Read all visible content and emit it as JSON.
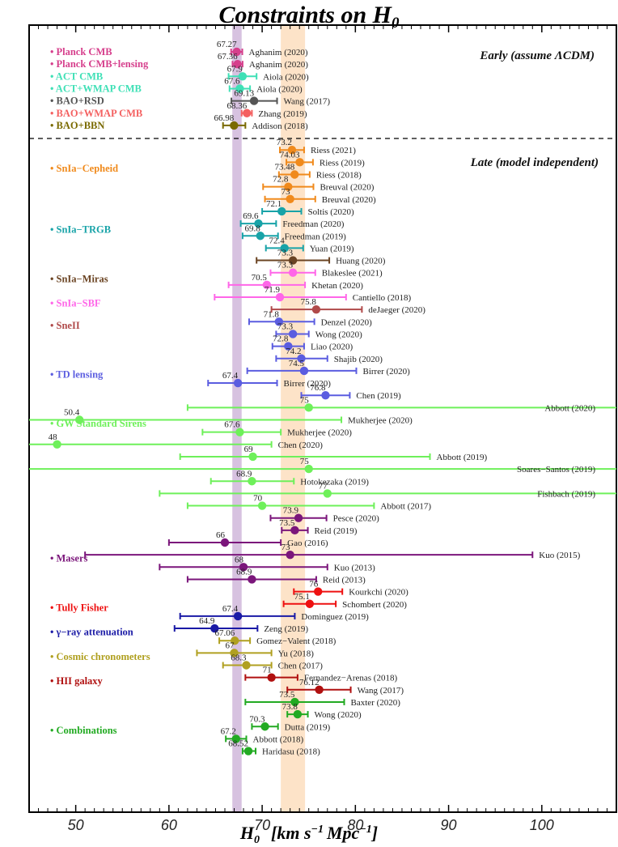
{
  "chart_data": {
    "type": "scatter",
    "title": "Constraints on H",
    "title_sub": "0",
    "xlabel": "H",
    "xlabel_sub": "0",
    "xlabel_units": "[km s",
    "xlabel_units2": "Mpc",
    "xlabel_units3": "]",
    "xlim": [
      45,
      108
    ],
    "xticks": [
      50,
      60,
      70,
      80,
      90,
      100
    ],
    "bands": [
      {
        "name": "planck-band",
        "range": [
          66.8,
          67.8
        ],
        "color": "#d7c2e0"
      },
      {
        "name": "shoes-band",
        "range": [
          72.0,
          74.6
        ],
        "color": "#fde3c8"
      }
    ],
    "sections": [
      {
        "name": "early",
        "label": "Early  (assume ΛCDM)"
      },
      {
        "name": "late",
        "label": "Late (model independent)"
      }
    ],
    "groups": [
      {
        "label": "• Planck CMB",
        "color": "#d63f8c",
        "row": 0
      },
      {
        "label": "• Planck CMB+lensing",
        "color": "#d63f8c",
        "row": 1
      },
      {
        "label": "• ACT CMB",
        "color": "#3fe0b6",
        "row": 2
      },
      {
        "label": "• ACT+WMAP CMB",
        "color": "#3fe0b6",
        "row": 3
      },
      {
        "label": "• BAO+RSD",
        "color": "#555555",
        "row": 4
      },
      {
        "label": "• BAO+WMAP CMB",
        "color": "#f46060",
        "row": 5
      },
      {
        "label": "• BAO+BBN",
        "color": "#7a6a00",
        "row": 6
      },
      {
        "label": "• SnIa−Cepheid",
        "color": "#f08a1c",
        "row": 9.5
      },
      {
        "label": "• SnIa−TRGB",
        "color": "#18a3a8",
        "row": 14.5
      },
      {
        "label": "• SnIa−Miras",
        "color": "#6b4423",
        "row": 18.5
      },
      {
        "label": "• SnIa−SBF",
        "color": "#ff66e8",
        "row": 20.5
      },
      {
        "label": "• SneII",
        "color": "#b04a4a",
        "row": 22.3
      },
      {
        "label": "• TD lensing",
        "color": "#5b5de0",
        "row": 26.3
      },
      {
        "label": "• GW Standard Sirens",
        "color": "#6ef05a",
        "row": 30.3
      },
      {
        "label": "• Masers",
        "color": "#7b167b",
        "row": 41.3
      },
      {
        "label": "• Tully Fisher",
        "color": "#ee1111",
        "row": 45.3
      },
      {
        "label": "• γ−ray attenuation",
        "color": "#1a1aa6",
        "row": 47.3
      },
      {
        "label": "• Cosmic chronometers",
        "color": "#b0a020",
        "row": 49.3
      },
      {
        "label": "• HII galaxy",
        "color": "#b01010",
        "row": 51.3
      },
      {
        "label": "• Combinations",
        "color": "#22aa22",
        "row": 55.3
      }
    ],
    "series": [
      {
        "value": 67.27,
        "lo": 66.67,
        "hi": 67.87,
        "label": "67.27",
        "ref": "Aghanim (2020)",
        "color": "#d63f8c",
        "row": 0
      },
      {
        "value": 67.36,
        "lo": 66.82,
        "hi": 67.9,
        "label": "67.36",
        "ref": "Aghanim (2020)",
        "color": "#d63f8c",
        "row": 1
      },
      {
        "value": 67.9,
        "lo": 66.4,
        "hi": 69.4,
        "label": "67.9",
        "ref": "Aiola (2020)",
        "color": "#3fe0b6",
        "row": 2
      },
      {
        "value": 67.6,
        "lo": 66.5,
        "hi": 68.7,
        "label": "67.6",
        "ref": "Aiola (2020)",
        "color": "#3fe0b6",
        "row": 3
      },
      {
        "value": 69.13,
        "lo": 66.7,
        "hi": 71.6,
        "label": "69.13",
        "ref": "Wang (2017)",
        "color": "#555555",
        "row": 4
      },
      {
        "value": 68.36,
        "lo": 67.8,
        "hi": 68.9,
        "label": "68.36",
        "ref": "Zhang (2019)",
        "color": "#f46060",
        "row": 5
      },
      {
        "value": 66.98,
        "lo": 65.8,
        "hi": 68.2,
        "label": "66.98",
        "ref": "Addison (2018)",
        "color": "#7a6a00",
        "row": 6
      },
      {
        "value": 73.2,
        "lo": 71.9,
        "hi": 74.5,
        "label": "73.2",
        "ref": "Riess (2021)",
        "color": "#f08a1c",
        "row": 8
      },
      {
        "value": 74.03,
        "lo": 72.6,
        "hi": 75.45,
        "label": "74.03",
        "ref": "Riess (2019)",
        "color": "#f08a1c",
        "row": 9
      },
      {
        "value": 73.48,
        "lo": 71.8,
        "hi": 75.1,
        "label": "73.48",
        "ref": "Riess (2018)",
        "color": "#f08a1c",
        "row": 10
      },
      {
        "value": 72.8,
        "lo": 70.1,
        "hi": 75.5,
        "label": "72.8",
        "ref": "Breuval (2020)",
        "color": "#f08a1c",
        "row": 11
      },
      {
        "value": 73.0,
        "lo": 70.3,
        "hi": 75.7,
        "label": "73",
        "ref": "Breuval (2020)",
        "color": "#f08a1c",
        "row": 12
      },
      {
        "value": 72.1,
        "lo": 70.0,
        "hi": 74.2,
        "label": "72.1",
        "ref": "Soltis (2020)",
        "color": "#18a3a8",
        "row": 13
      },
      {
        "value": 69.6,
        "lo": 67.7,
        "hi": 71.5,
        "label": "69.6",
        "ref": "Freedman (2020)",
        "color": "#18a3a8",
        "row": 14
      },
      {
        "value": 69.8,
        "lo": 67.9,
        "hi": 71.7,
        "label": "69.8",
        "ref": "Freedman (2019)",
        "color": "#18a3a8",
        "row": 15
      },
      {
        "value": 72.4,
        "lo": 70.4,
        "hi": 74.4,
        "label": "72.4",
        "ref": "Yuan (2019)",
        "color": "#18a3a8",
        "row": 16
      },
      {
        "value": 73.3,
        "lo": 69.4,
        "hi": 77.2,
        "label": "73.3",
        "ref": "Huang (2020)",
        "color": "#6b4423",
        "row": 17
      },
      {
        "value": 73.3,
        "lo": 70.9,
        "hi": 75.7,
        "label": "73.3",
        "ref": "Blakeslee (2021)",
        "color": "#ff66e8",
        "row": 18
      },
      {
        "value": 70.5,
        "lo": 66.4,
        "hi": 74.6,
        "label": "70.5",
        "ref": "Khetan (2020)",
        "color": "#ff66e8",
        "row": 19
      },
      {
        "value": 71.9,
        "lo": 64.9,
        "hi": 79.0,
        "label": "71.9",
        "ref": "Cantiello (2018)",
        "color": "#ff66e8",
        "row": 20
      },
      {
        "value": 75.8,
        "lo": 71.0,
        "hi": 80.7,
        "label": "75.8",
        "ref": "deJaeger (2020)",
        "color": "#b04a4a",
        "row": 21
      },
      {
        "value": 71.8,
        "lo": 68.6,
        "hi": 75.6,
        "label": "71.8",
        "ref": "Denzel (2020)",
        "color": "#5b5de0",
        "row": 22
      },
      {
        "value": 73.3,
        "lo": 71.5,
        "hi": 75.0,
        "label": "73.3",
        "ref": "Wong (2020)",
        "color": "#5b5de0",
        "row": 23
      },
      {
        "value": 72.8,
        "lo": 71.1,
        "hi": 74.5,
        "label": "72.8",
        "ref": "Liao (2020)",
        "color": "#5b5de0",
        "row": 24
      },
      {
        "value": 74.2,
        "lo": 71.5,
        "hi": 77.0,
        "label": "74.2",
        "ref": "Shajib (2020)",
        "color": "#5b5de0",
        "row": 25
      },
      {
        "value": 74.5,
        "lo": 68.4,
        "hi": 80.1,
        "label": "74.5",
        "ref": "Birrer (2020)",
        "color": "#5b5de0",
        "row": 26
      },
      {
        "value": 67.4,
        "lo": 64.2,
        "hi": 71.6,
        "label": "67.4",
        "ref": "Birrer (2020)",
        "color": "#5b5de0",
        "row": 27
      },
      {
        "value": 76.8,
        "lo": 74.2,
        "hi": 79.4,
        "label": "76.8",
        "ref": "Chen (2019)",
        "color": "#5b5de0",
        "row": 28
      },
      {
        "value": 75.0,
        "lo": 62.0,
        "hi": 108.0,
        "label": "75",
        "ref": "Abbott (2020)",
        "color": "#6ef05a",
        "row": 29,
        "ref_x": "far"
      },
      {
        "value": 50.4,
        "lo": 45.0,
        "hi": 78.5,
        "label": "50.4",
        "ref": "Mukherjee (2020)",
        "color": "#6ef05a",
        "row": 30
      },
      {
        "value": 67.6,
        "lo": 63.6,
        "hi": 72.0,
        "label": "67.6",
        "ref": "Mukherjee (2020)",
        "color": "#6ef05a",
        "row": 31
      },
      {
        "value": 48.0,
        "lo": 45.0,
        "hi": 71.0,
        "label": "48",
        "ref": "Chen (2020)",
        "color": "#6ef05a",
        "row": 32
      },
      {
        "value": 69.0,
        "lo": 61.2,
        "hi": 88.0,
        "label": "69",
        "ref": "Abbott (2019)",
        "color": "#6ef05a",
        "row": 33
      },
      {
        "value": 75.0,
        "lo": 45.0,
        "hi": 108.0,
        "label": "75",
        "ref": "Soares−Santos (2019)",
        "color": "#6ef05a",
        "row": 34,
        "ref_x": "far"
      },
      {
        "value": 68.9,
        "lo": 64.5,
        "hi": 73.4,
        "label": "68.9",
        "ref": "Hotokezaka (2019)",
        "color": "#6ef05a",
        "row": 35
      },
      {
        "value": 77.0,
        "lo": 59.0,
        "hi": 108.0,
        "label": "77",
        "ref": "Fishbach (2019)",
        "color": "#6ef05a",
        "row": 36,
        "ref_x": "far"
      },
      {
        "value": 70.0,
        "lo": 62.0,
        "hi": 82.0,
        "label": "70",
        "ref": "Abbott (2017)",
        "color": "#6ef05a",
        "row": 37
      },
      {
        "value": 73.9,
        "lo": 70.9,
        "hi": 76.9,
        "label": "73.9",
        "ref": "Pesce (2020)",
        "color": "#7b167b",
        "row": 38
      },
      {
        "value": 73.5,
        "lo": 72.1,
        "hi": 74.9,
        "label": "73.5",
        "ref": "Reid (2019)",
        "color": "#7b167b",
        "row": 39
      },
      {
        "value": 66.0,
        "lo": 60.0,
        "hi": 72.0,
        "label": "66",
        "ref": "Gao (2016)",
        "color": "#7b167b",
        "row": 40
      },
      {
        "value": 73.0,
        "lo": 51.0,
        "hi": 99.0,
        "label": "73",
        "ref": "Kuo (2015)",
        "color": "#7b167b",
        "row": 41
      },
      {
        "value": 68.0,
        "lo": 59.0,
        "hi": 77.0,
        "label": "68",
        "ref": "Kuo (2013)",
        "color": "#7b167b",
        "row": 42
      },
      {
        "value": 68.9,
        "lo": 62.0,
        "hi": 75.8,
        "label": "68.9",
        "ref": "Reid (2013)",
        "color": "#7b167b",
        "row": 43
      },
      {
        "value": 76.0,
        "lo": 73.4,
        "hi": 78.6,
        "label": "76",
        "ref": "Kourkchi (2020)",
        "color": "#ee1111",
        "row": 44
      },
      {
        "value": 75.1,
        "lo": 72.3,
        "hi": 77.9,
        "label": "75.1",
        "ref": "Schombert (2020)",
        "color": "#ee1111",
        "row": 45
      },
      {
        "value": 67.4,
        "lo": 61.2,
        "hi": 73.5,
        "label": "67.4",
        "ref": "Dominguez (2019)",
        "color": "#1a1aa6",
        "row": 46
      },
      {
        "value": 64.9,
        "lo": 60.6,
        "hi": 69.5,
        "label": "64.9",
        "ref": "Zeng (2019)",
        "color": "#1a1aa6",
        "row": 47
      },
      {
        "value": 67.06,
        "lo": 65.4,
        "hi": 68.7,
        "label": "67.06",
        "ref": "Gomez−Valent (2018)",
        "color": "#b0a020",
        "row": 48
      },
      {
        "value": 67.0,
        "lo": 63.0,
        "hi": 71.0,
        "label": "67",
        "ref": "Yu (2018)",
        "color": "#b0a020",
        "row": 49
      },
      {
        "value": 68.3,
        "lo": 65.8,
        "hi": 71.0,
        "label": "68.3",
        "ref": "Chen (2017)",
        "color": "#b0a020",
        "row": 50
      },
      {
        "value": 71.0,
        "lo": 68.2,
        "hi": 73.8,
        "label": "71",
        "ref": "Fernandez−Arenas (2018)",
        "color": "#b01010",
        "row": 51
      },
      {
        "value": 76.12,
        "lo": 72.7,
        "hi": 79.5,
        "label": "76.12",
        "ref": "Wang (2017)",
        "color": "#b01010",
        "row": 52
      },
      {
        "value": 73.5,
        "lo": 68.2,
        "hi": 78.8,
        "label": "73.5",
        "ref": "Baxter (2020)",
        "color": "#22aa22",
        "row": 53
      },
      {
        "value": 73.8,
        "lo": 72.7,
        "hi": 74.9,
        "label": "73.8",
        "ref": "Wong (2020)",
        "color": "#22aa22",
        "row": 54
      },
      {
        "value": 70.3,
        "lo": 68.9,
        "hi": 71.7,
        "label": "70.3",
        "ref": "Dutta (2019)",
        "color": "#22aa22",
        "row": 55
      },
      {
        "value": 67.2,
        "lo": 66.1,
        "hi": 68.3,
        "label": "67.2",
        "ref": "Abbott (2018)",
        "color": "#22aa22",
        "row": 56
      },
      {
        "value": 68.52,
        "lo": 67.9,
        "hi": 69.3,
        "label": "68.52",
        "ref": "Haridasu (2018)",
        "color": "#22aa22",
        "row": 57
      }
    ]
  }
}
